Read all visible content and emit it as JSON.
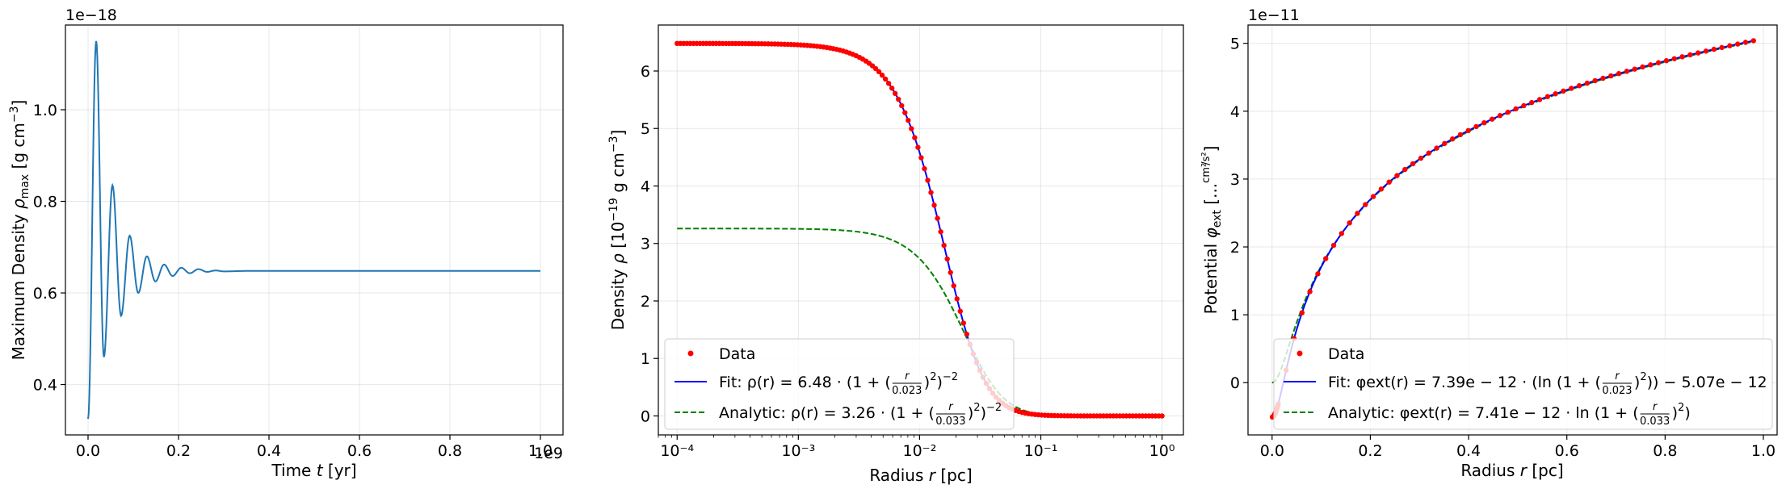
{
  "chart_data": [
    {
      "type": "line",
      "xlabel": "Time t [yr]",
      "ylabel": "Maximum Density ρmax [g cm⁻³]",
      "x_offset_label": "1e9",
      "y_offset_label": "1e−18",
      "xlim": [
        -0.05,
        1.05
      ],
      "ylim": [
        0.29,
        1.185
      ],
      "x_ticks": [
        0.0,
        0.2,
        0.4,
        0.6,
        0.8,
        1.0
      ],
      "x_tick_labels": [
        "0.0",
        "0.2",
        "0.4",
        "0.6",
        "0.8",
        "1.0"
      ],
      "y_ticks": [
        0.4,
        0.6,
        0.8,
        1.0
      ],
      "y_tick_labels": [
        "0.4",
        "0.6",
        "0.8",
        "1.0"
      ],
      "grid": true,
      "series": [
        {
          "color": "#1f77b4",
          "x": [
            0.0,
            0.018,
            0.035,
            0.054,
            0.073,
            0.092,
            0.111,
            0.13,
            0.149,
            0.168,
            0.187,
            0.206,
            0.225,
            0.244,
            0.263,
            0.282,
            0.3,
            0.35,
            0.5,
            1.0
          ],
          "y": [
            0.325,
            1.15,
            0.46,
            0.835,
            0.55,
            0.725,
            0.6,
            0.68,
            0.625,
            0.662,
            0.637,
            0.655,
            0.643,
            0.652,
            0.646,
            0.649,
            0.647,
            0.648,
            0.648,
            0.648
          ]
        }
      ]
    },
    {
      "type": "scatter",
      "xlabel": "Radius r [pc]",
      "ylabel": "Density ρ [10⁻¹⁹ g cm⁻³]",
      "xscale": "log",
      "xlim": [
        7e-05,
        1.5
      ],
      "ylim": [
        -0.33,
        6.8
      ],
      "x_ticks": [
        0.0001,
        0.001,
        0.01,
        0.1,
        1
      ],
      "x_tick_labels": [
        "10⁻⁴",
        "10⁻³",
        "10⁻²",
        "10⁻¹",
        "10⁰"
      ],
      "y_ticks": [
        0,
        1,
        2,
        3,
        4,
        5,
        6
      ],
      "y_tick_labels": [
        "0",
        "1",
        "2",
        "3",
        "4",
        "5",
        "6"
      ],
      "grid": true,
      "legend_position": "lower-left",
      "series": [
        {
          "name": "Data",
          "style": "markers",
          "color": "#ff0000",
          "model": {
            "amplitude": 6.48,
            "core_radius": 0.023,
            "r_min": 0.0001,
            "r_max": 1.0,
            "count": 150
          }
        },
        {
          "name": "Fit: ρ(r) = 6.48 · (1 + (r/0.023)²)⁻²",
          "style": "solid",
          "color": "#0000ff",
          "model": {
            "amplitude": 6.48,
            "core_radius": 0.023
          }
        },
        {
          "name": "Analytic: ρ(r) = 3.26 · (1 + (r/0.033)²)⁻²",
          "style": "dashed",
          "color": "#008000",
          "model": {
            "amplitude": 3.26,
            "core_radius": 0.033
          }
        }
      ],
      "legend": [
        {
          "label": "Data",
          "marker": "dot",
          "color": "#ff0000"
        },
        {
          "prefix": "Fit: ",
          "formula": [
            "ρ(r) = 6.48 · (1 + (",
            "r",
            "0.023",
            ")",
            "2",
            ")",
            "−2",
            ""
          ],
          "marker": "solid",
          "color": "#0000ff"
        },
        {
          "prefix": "Analytic: ",
          "formula": [
            "ρ(r) = 3.26 · (1 + (",
            "r",
            "0.033",
            ")",
            "2",
            ")",
            "−2",
            ""
          ],
          "marker": "dashed",
          "color": "#008000"
        }
      ]
    },
    {
      "type": "scatter",
      "xlabel": "Radius r [pc]",
      "ylabel": "Potential φext [...cm²/s²]",
      "y_offset_label": "1e−11",
      "xlim": [
        -0.049,
        1.028
      ],
      "ylim": [
        -0.77,
        5.27
      ],
      "x_ticks": [
        0.0,
        0.2,
        0.4,
        0.6,
        0.8,
        1.0
      ],
      "x_tick_labels": [
        "0.0",
        "0.2",
        "0.4",
        "0.6",
        "0.8",
        "1.0"
      ],
      "y_ticks": [
        0,
        1,
        2,
        3,
        4,
        5
      ],
      "y_tick_labels": [
        "0",
        "1",
        "2",
        "3",
        "4",
        "5"
      ],
      "grid": true,
      "legend_position": "lower-right",
      "series": [
        {
          "name": "Data",
          "style": "markers",
          "color": "#ff0000",
          "model": {
            "amplitude": 0.739,
            "core_radius": 0.023,
            "offset": -0.507,
            "x_min": 0.0,
            "x_max": 0.98,
            "count": 60
          }
        },
        {
          "name": "Fit: φext(r) = 7.39e−12 · (ln(1 + (r/0.023)²)) − 5.07e−12",
          "style": "solid",
          "color": "#0000ff",
          "model": {
            "amplitude": 0.739,
            "core_radius": 0.023,
            "offset": -0.507
          }
        },
        {
          "name": "Analytic: φext(r) = 7.41e−12 · ln(1 + (r/0.033)²)",
          "style": "dashed",
          "color": "#008000",
          "model": {
            "amplitude": 0.741,
            "core_radius": 0.033,
            "offset": 0.0
          }
        }
      ],
      "legend": [
        {
          "label": "Data",
          "marker": "dot",
          "color": "#ff0000"
        },
        {
          "prefix": "Fit: ",
          "formula": [
            "φext(r) = 7.39e − 12 · (ln (1 + (",
            "r",
            "0.023",
            ")",
            "2",
            "))",
            "",
            " − 5.07e − 12"
          ],
          "marker": "solid",
          "color": "#0000ff"
        },
        {
          "prefix": "Analytic: ",
          "formula": [
            "φext(r) = 7.41e − 12 · ln (1 + (",
            "r",
            "0.033",
            ")",
            "2",
            ")",
            "",
            ""
          ],
          "marker": "dashed",
          "color": "#008000"
        }
      ]
    }
  ]
}
